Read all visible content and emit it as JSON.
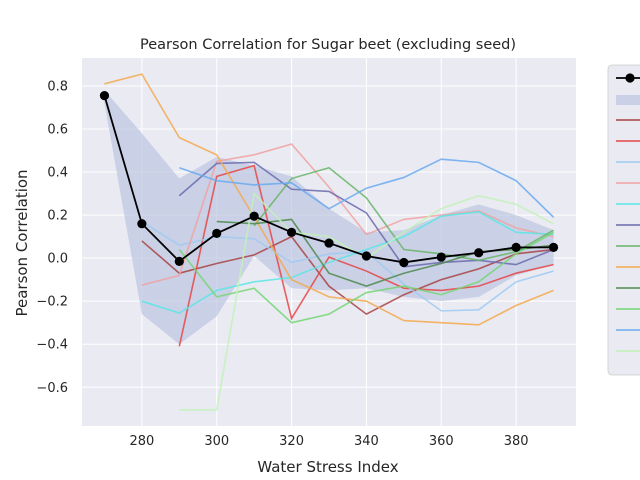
{
  "chart_data": {
    "type": "line",
    "title": "Pearson Correlation for Sugar beet (excluding seed)",
    "xlabel": "Water Stress Index",
    "ylabel": "Pearson Correlation",
    "xlim": [
      264,
      396
    ],
    "ylim": [
      -0.78,
      0.93
    ],
    "xticks": [
      280,
      300,
      320,
      340,
      360,
      380
    ],
    "yticks": [
      -0.6,
      -0.4,
      -0.2,
      0.0,
      0.2,
      0.4,
      0.6,
      0.8
    ],
    "xtick_labels": [
      "280",
      "300",
      "320",
      "340",
      "360",
      "380"
    ],
    "ytick_labels": [
      "−0.6",
      "−0.4",
      "−0.2",
      "0.0",
      "0.2",
      "0.4",
      "0.6",
      "0.8"
    ],
    "grid": true,
    "legend_position": "right, clipped",
    "band": {
      "color": "#b4bedc",
      "x": [
        270,
        280,
        290,
        300,
        310,
        320,
        330,
        340,
        350,
        360,
        370,
        380,
        390
      ],
      "upper": [
        0.78,
        0.58,
        0.37,
        0.47,
        0.43,
        0.38,
        0.23,
        0.12,
        0.13,
        0.2,
        0.25,
        0.2,
        0.13
      ],
      "lower": [
        0.72,
        -0.26,
        -0.4,
        -0.27,
        0.01,
        -0.14,
        -0.15,
        -0.14,
        -0.18,
        -0.2,
        -0.18,
        -0.08,
        -0.03
      ]
    },
    "mean": {
      "color": "#000000",
      "x": [
        270,
        280,
        290,
        300,
        310,
        320,
        330,
        340,
        350,
        360,
        370,
        380,
        390
      ],
      "y": [
        0.755,
        0.16,
        -0.015,
        0.115,
        0.195,
        0.12,
        0.07,
        0.01,
        -0.02,
        0.005,
        0.025,
        0.05,
        0.05
      ]
    },
    "series": [
      {
        "color": "#a84343",
        "x": [
          280,
          290,
          300,
          310,
          320,
          330,
          340,
          350,
          360,
          370,
          380,
          390
        ],
        "y": [
          0.08,
          -0.07,
          -0.025,
          0.015,
          0.1,
          -0.13,
          -0.26,
          -0.17,
          -0.1,
          -0.05,
          0.02,
          0.04
        ]
      },
      {
        "color": "#e64545",
        "x": [
          290,
          300,
          310,
          320,
          330,
          340,
          350,
          360,
          370,
          380,
          390
        ],
        "y": [
          -0.41,
          0.38,
          0.43,
          -0.28,
          0.005,
          -0.06,
          -0.14,
          -0.15,
          -0.13,
          -0.07,
          -0.03
        ]
      },
      {
        "color": "#9fcaf2",
        "x": [
          280,
          290,
          300,
          310,
          320,
          330,
          340,
          350,
          360,
          370,
          380,
          390
        ],
        "y": [
          0.17,
          0.06,
          0.1,
          0.09,
          -0.02,
          0.02,
          0.03,
          -0.12,
          -0.245,
          -0.24,
          -0.11,
          -0.06
        ]
      },
      {
        "color": "#f0a2a2",
        "x": [
          280,
          290,
          300,
          310,
          320,
          330,
          340,
          350,
          360,
          370,
          380,
          390
        ],
        "y": [
          -0.125,
          -0.08,
          0.45,
          0.48,
          0.53,
          0.33,
          0.11,
          0.18,
          0.2,
          0.22,
          0.14,
          0.1
        ]
      },
      {
        "color": "#5ae6e6",
        "x": [
          280,
          290,
          300,
          310,
          320,
          330,
          340,
          350,
          360,
          370,
          380,
          390
        ],
        "y": [
          -0.2,
          -0.255,
          -0.15,
          -0.11,
          -0.09,
          -0.02,
          0.04,
          0.1,
          0.195,
          0.215,
          0.12,
          0.11
        ]
      },
      {
        "color": "#6a6aae",
        "x": [
          290,
          300,
          310,
          320,
          330,
          340,
          350,
          360,
          370,
          380,
          390
        ],
        "y": [
          0.29,
          0.44,
          0.445,
          0.32,
          0.31,
          0.21,
          -0.04,
          -0.02,
          -0.01,
          -0.03,
          0.04
        ]
      },
      {
        "color": "#67b567",
        "x": [
          310,
          320,
          330,
          340,
          350,
          360,
          370,
          380,
          390
        ],
        "y": [
          0.15,
          0.37,
          0.42,
          0.28,
          0.04,
          0.02,
          -0.01,
          0.03,
          0.13
        ]
      },
      {
        "color": "#f5a94d",
        "x": [
          270,
          280,
          290,
          300,
          310,
          320,
          330,
          340,
          350,
          360,
          370,
          380,
          390
        ],
        "y": [
          0.81,
          0.855,
          0.56,
          0.48,
          0.19,
          -0.1,
          -0.18,
          -0.2,
          -0.29,
          -0.3,
          -0.31,
          -0.22,
          -0.15
        ]
      },
      {
        "color": "#4e8a4e",
        "x": [
          300,
          310,
          320,
          330,
          340,
          350,
          360,
          370,
          380,
          390
        ],
        "y": [
          0.17,
          0.16,
          0.18,
          -0.07,
          -0.13,
          -0.07,
          -0.025,
          0.03,
          0.04,
          0.06
        ]
      },
      {
        "color": "#74d674",
        "x": [
          290,
          300,
          310,
          320,
          330,
          340,
          350,
          360,
          370,
          380,
          390
        ],
        "y": [
          0.04,
          -0.18,
          -0.14,
          -0.3,
          -0.26,
          -0.16,
          -0.13,
          -0.17,
          -0.11,
          0.02,
          0.12
        ]
      },
      {
        "color": "#6aa9f0",
        "x": [
          290,
          300,
          310,
          320,
          330,
          340,
          350,
          360,
          370,
          380,
          390
        ],
        "y": [
          0.42,
          0.36,
          0.34,
          0.35,
          0.23,
          0.325,
          0.375,
          0.46,
          0.445,
          0.36,
          0.19
        ]
      },
      {
        "color": "#c2f2b8",
        "x": [
          290,
          300,
          310,
          320,
          330,
          340,
          350,
          360,
          370,
          380,
          390
        ],
        "y": [
          -0.705,
          -0.705,
          0.3,
          0.12,
          0.1,
          0.0,
          0.12,
          0.23,
          0.29,
          0.25,
          0.16
        ]
      }
    ]
  }
}
